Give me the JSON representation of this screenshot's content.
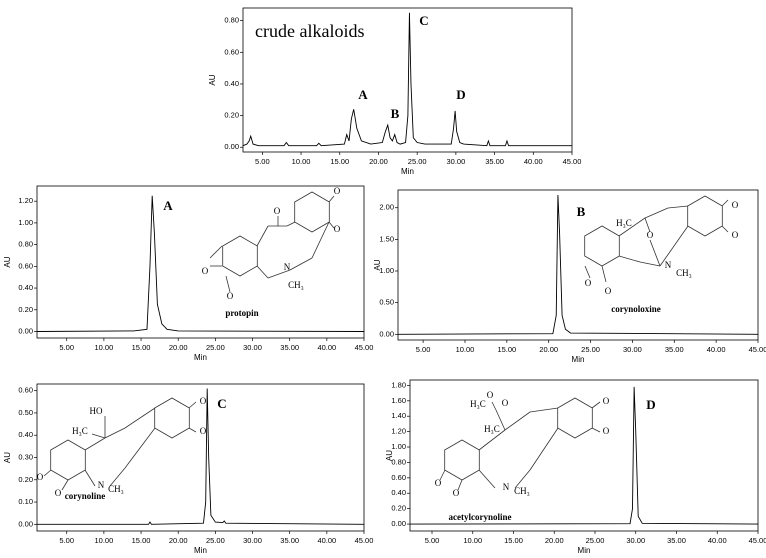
{
  "chart_data": [
    {
      "type": "line",
      "annotation": "crude alkaloids",
      "peak_labels": [
        "A",
        "B",
        "C",
        "D"
      ],
      "x_label": "Min",
      "y_label": "AU",
      "xlim": [
        2.5,
        45
      ],
      "ylim": [
        -0.03,
        0.88
      ],
      "xticks": [
        {
          "value": 5,
          "label": "5.00"
        },
        {
          "value": 10,
          "label": "10.00"
        },
        {
          "value": 15,
          "label": "15.00"
        },
        {
          "value": 20,
          "label": "20.00"
        },
        {
          "value": 25,
          "label": "25.00"
        },
        {
          "value": 30,
          "label": "30.00"
        },
        {
          "value": 35,
          "label": "35.00"
        },
        {
          "value": 40,
          "label": "40.00"
        },
        {
          "value": 45,
          "label": "45.00"
        }
      ],
      "yticks": [
        {
          "value": 0,
          "label": "0.00"
        },
        {
          "value": 0.2,
          "label": "0.20"
        },
        {
          "value": 0.4,
          "label": "0.40"
        },
        {
          "value": 0.6,
          "label": "0.60"
        },
        {
          "value": 0.8,
          "label": "0.80"
        }
      ],
      "series": [
        {
          "color": "#000000",
          "x": [
            2.5,
            3.0,
            3.3,
            3.5,
            3.8,
            4.5,
            7.8,
            8.1,
            8.4,
            12,
            12.3,
            12.6,
            15.6,
            15.9,
            16.2,
            16.5,
            16.8,
            17.2,
            17.8,
            19,
            20.5,
            20.9,
            21.2,
            21.5,
            21.8,
            22.1,
            22.4,
            22.8,
            23.5,
            23.8,
            24.0,
            24.2,
            24.5,
            25.0,
            26,
            29.4,
            29.7,
            29.9,
            30.1,
            30.5,
            31,
            34,
            34.2,
            34.4,
            36.4,
            36.6,
            36.8,
            45
          ],
          "values": [
            0.01,
            0.02,
            0.04,
            0.07,
            0.02,
            0.01,
            0.01,
            0.03,
            0.01,
            0.01,
            0.025,
            0.01,
            0.02,
            0.08,
            0.04,
            0.18,
            0.24,
            0.12,
            0.04,
            0.02,
            0.03,
            0.1,
            0.14,
            0.06,
            0.04,
            0.08,
            0.03,
            0.02,
            0.03,
            0.2,
            0.85,
            0.4,
            0.06,
            0.03,
            0.02,
            0.02,
            0.12,
            0.23,
            0.1,
            0.03,
            0.02,
            0.01,
            0.04,
            0.01,
            0.01,
            0.04,
            0.01,
            0.01
          ]
        }
      ]
    },
    {
      "type": "line",
      "peak_label": "A",
      "compound": "protopin",
      "structure_labels": [
        "O",
        "O",
        "O",
        "O",
        "O",
        "N",
        "CH₃"
      ],
      "x_label": "Min",
      "y_label": "AU",
      "xlim": [
        1,
        45
      ],
      "ylim": [
        -0.06,
        1.34
      ],
      "xticks": [
        {
          "value": 5,
          "label": "5.00"
        },
        {
          "value": 10,
          "label": "10.00"
        },
        {
          "value": 15,
          "label": "15.00"
        },
        {
          "value": 20,
          "label": "20.00"
        },
        {
          "value": 25,
          "label": "25.00"
        },
        {
          "value": 30,
          "label": "30.00"
        },
        {
          "value": 35,
          "label": "35.00"
        },
        {
          "value": 40,
          "label": "40.00"
        },
        {
          "value": 45,
          "label": "45.00"
        }
      ],
      "yticks": [
        {
          "value": 0,
          "label": "0.00"
        },
        {
          "value": 0.2,
          "label": "0.20"
        },
        {
          "value": 0.4,
          "label": "0.40"
        },
        {
          "value": 0.6,
          "label": "0.60"
        },
        {
          "value": 0.8,
          "label": "0.80"
        },
        {
          "value": 1.0,
          "label": "1.00"
        },
        {
          "value": 1.2,
          "label": "1.20"
        }
      ],
      "series": [
        {
          "color": "#000000",
          "x": [
            1,
            14,
            15.8,
            16.2,
            16.5,
            16.8,
            17.2,
            17.8,
            18.5,
            20,
            45
          ],
          "values": [
            0,
            0.005,
            0.02,
            0.6,
            1.25,
            0.9,
            0.25,
            0.07,
            0.02,
            0.005,
            0
          ]
        }
      ]
    },
    {
      "type": "line",
      "peak_label": "B",
      "compound": "corynoloxine",
      "structure_labels": [
        "H₃C",
        "O",
        "N",
        "CH₃",
        "O",
        "O",
        "O",
        "O"
      ],
      "x_label": "Min",
      "y_label": "AU",
      "xlim": [
        2,
        45
      ],
      "ylim": [
        -0.09,
        2.28
      ],
      "xticks": [
        {
          "value": 5,
          "label": "5.00"
        },
        {
          "value": 10,
          "label": "10.00"
        },
        {
          "value": 15,
          "label": "15.00"
        },
        {
          "value": 20,
          "label": "20.00"
        },
        {
          "value": 25,
          "label": "25.00"
        },
        {
          "value": 30,
          "label": "30.00"
        },
        {
          "value": 35,
          "label": "35.00"
        },
        {
          "value": 40,
          "label": "40.00"
        },
        {
          "value": 45,
          "label": "45.00"
        }
      ],
      "yticks": [
        {
          "value": 0,
          "label": "0.00"
        },
        {
          "value": 0.5,
          "label": "0.50"
        },
        {
          "value": 1.0,
          "label": "1.00"
        },
        {
          "value": 1.5,
          "label": "1.50"
        },
        {
          "value": 2.0,
          "label": "2.00"
        }
      ],
      "series": [
        {
          "color": "#000000",
          "x": [
            2,
            20.5,
            20.9,
            21.1,
            21.3,
            21.6,
            22.0,
            22.6,
            45
          ],
          "values": [
            0,
            0.01,
            0.3,
            2.2,
            1.6,
            0.3,
            0.08,
            0.02,
            0
          ]
        }
      ]
    },
    {
      "type": "line",
      "peak_label": "C",
      "compound": "corynoline",
      "structure_labels": [
        "HO",
        "H₃C",
        "N",
        "CH₃",
        "O",
        "O",
        "O",
        "O"
      ],
      "x_label": "Min",
      "y_label": "AU",
      "xlim": [
        1,
        45
      ],
      "ylim": [
        -0.03,
        0.63
      ],
      "xticks": [
        {
          "value": 5,
          "label": "5.00"
        },
        {
          "value": 10,
          "label": "10.00"
        },
        {
          "value": 15,
          "label": "15.00"
        },
        {
          "value": 20,
          "label": "20.00"
        },
        {
          "value": 25,
          "label": "25.00"
        },
        {
          "value": 30,
          "label": "30.00"
        },
        {
          "value": 35,
          "label": "35.00"
        },
        {
          "value": 40,
          "label": "40.00"
        },
        {
          "value": 45,
          "label": "45.00"
        }
      ],
      "yticks": [
        {
          "value": 0,
          "label": "0.00"
        },
        {
          "value": 0.1,
          "label": "0.10"
        },
        {
          "value": 0.2,
          "label": "0.20"
        },
        {
          "value": 0.3,
          "label": "0.30"
        },
        {
          "value": 0.4,
          "label": "0.40"
        },
        {
          "value": 0.5,
          "label": "0.50"
        },
        {
          "value": 0.6,
          "label": "0.60"
        }
      ],
      "series": [
        {
          "color": "#000000",
          "x": [
            1,
            16,
            16.2,
            16.4,
            23.4,
            23.7,
            23.9,
            24.1,
            24.4,
            25,
            26,
            26.2,
            26.4,
            45
          ],
          "values": [
            0,
            0,
            0.01,
            0,
            0.005,
            0.1,
            0.61,
            0.3,
            0.04,
            0.01,
            0.008,
            0.015,
            0.005,
            0
          ]
        }
      ]
    },
    {
      "type": "line",
      "peak_label": "D",
      "compound": "acetylcorynoline",
      "structure_labels": [
        "H₃C",
        "O",
        "O",
        "H₃C",
        "N",
        "CH₃",
        "O",
        "O",
        "O",
        "O"
      ],
      "x_label": "Min",
      "y_label": "AU",
      "xlim": [
        2.3,
        45
      ],
      "ylim": [
        -0.09,
        1.87
      ],
      "xticks": [
        {
          "value": 5,
          "label": "5.00"
        },
        {
          "value": 10,
          "label": "10.00"
        },
        {
          "value": 15,
          "label": "15.00"
        },
        {
          "value": 20,
          "label": "20.00"
        },
        {
          "value": 25,
          "label": "25.00"
        },
        {
          "value": 30,
          "label": "30.00"
        },
        {
          "value": 35,
          "label": "35.00"
        },
        {
          "value": 40,
          "label": "40.00"
        },
        {
          "value": 45,
          "label": "45.00"
        }
      ],
      "yticks": [
        {
          "value": 0,
          "label": "0.00"
        },
        {
          "value": 0.2,
          "label": "0.20"
        },
        {
          "value": 0.4,
          "label": "0.40"
        },
        {
          "value": 0.6,
          "label": "0.60"
        },
        {
          "value": 0.8,
          "label": "0.80"
        },
        {
          "value": 1.0,
          "label": "1.00"
        },
        {
          "value": 1.2,
          "label": "1.20"
        },
        {
          "value": 1.4,
          "label": "1.40"
        },
        {
          "value": 1.6,
          "label": "1.60"
        },
        {
          "value": 1.8,
          "label": "1.80"
        }
      ],
      "series": [
        {
          "color": "#000000",
          "x": [
            2.3,
            29.3,
            29.6,
            29.8,
            30.0,
            30.3,
            30.8,
            45
          ],
          "values": [
            0,
            0.005,
            0.2,
            1.78,
            1.2,
            0.1,
            0.01,
            0
          ]
        }
      ]
    }
  ]
}
